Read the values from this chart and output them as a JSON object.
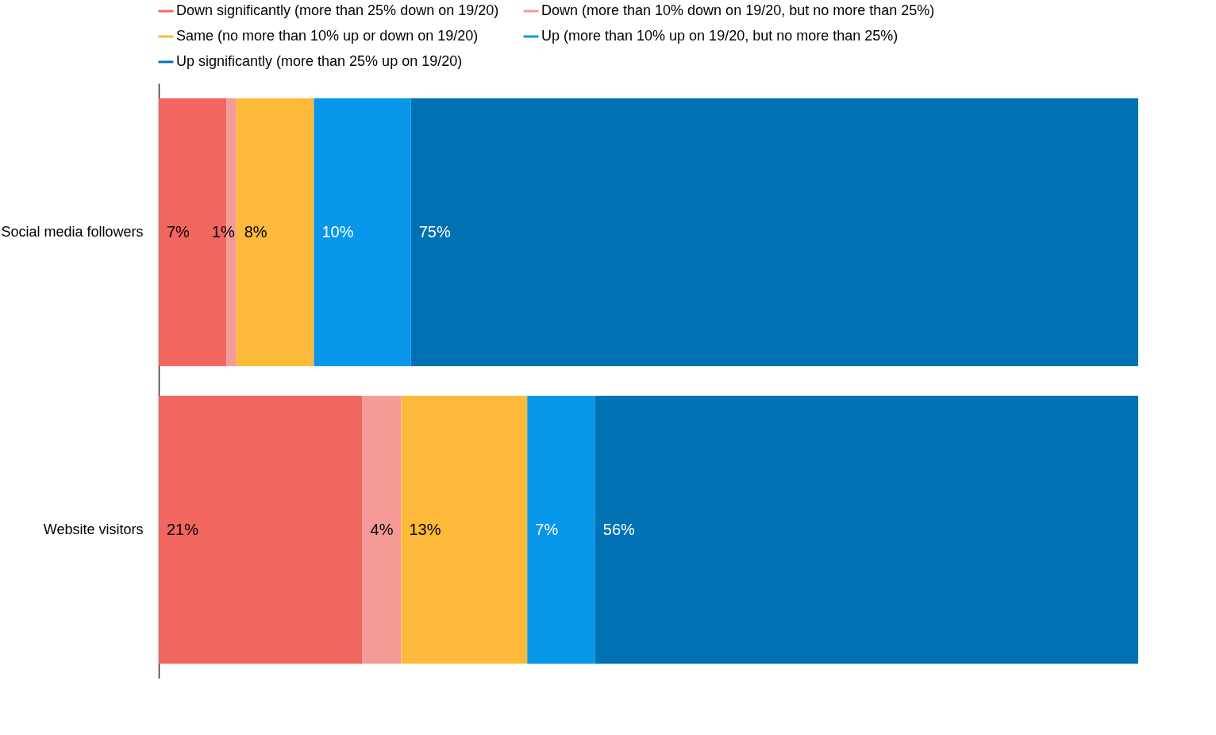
{
  "chart_data": {
    "type": "bar",
    "orientation": "horizontal",
    "stacked": true,
    "legend": "top",
    "tick_labels": "y",
    "categories": [
      "Social media followers",
      "Website visitors"
    ],
    "series": [
      {
        "name": "Down significantly (more than 25% down on 19/20)",
        "color": "#f26660",
        "values": [
          7,
          21
        ],
        "value_labels": [
          "7%",
          "21%"
        ]
      },
      {
        "name": "Down (more than 10% down on 19/20, but no more than 25%)",
        "color": "#f49b98",
        "values": [
          1,
          4
        ],
        "value_labels": [
          "1%",
          "4%"
        ]
      },
      {
        "name": "Same (no more than 10% up or down on 19/20)",
        "color": "#fdb939",
        "values": [
          8,
          13
        ],
        "value_labels": [
          "8%",
          "13%"
        ]
      },
      {
        "name": "Up (more than 10% up on 19/20, but no more than 25%)",
        "color": "#0896ea",
        "values": [
          10,
          7
        ],
        "value_labels": [
          "10%",
          "7%"
        ]
      },
      {
        "name": "Up significantly (more than 25% up on 19/20)",
        "color": "#0071b3",
        "values": [
          75,
          56
        ],
        "value_labels": [
          "75%",
          "56%"
        ]
      }
    ]
  }
}
